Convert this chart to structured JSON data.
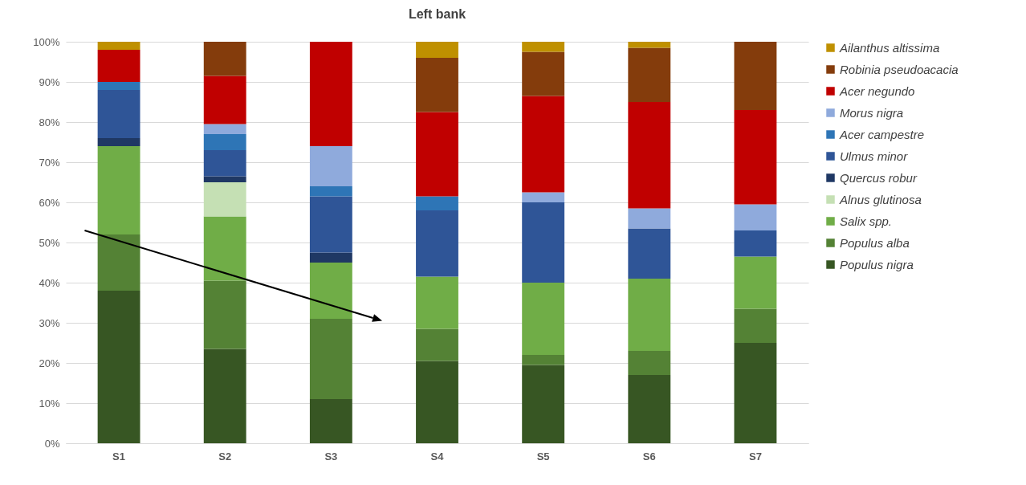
{
  "chart_data": {
    "type": "bar",
    "title": "Left bank",
    "stacked": true,
    "categories": [
      "S1",
      "S2",
      "S3",
      "S4",
      "S5",
      "S6",
      "S7"
    ],
    "series": [
      {
        "name": "Populus nigra",
        "color": "#375623",
        "values": [
          38,
          23.5,
          11,
          20.5,
          19.5,
          17,
          25
        ]
      },
      {
        "name": "Populus alba",
        "color": "#548235",
        "values": [
          14,
          17,
          20,
          8,
          2.5,
          6,
          8.5
        ]
      },
      {
        "name": "Salix spp.",
        "color": "#70ad47",
        "values": [
          22,
          16,
          14,
          13,
          18,
          18,
          13
        ]
      },
      {
        "name": "Alnus glutinosa",
        "color": "#c5e0b4",
        "values": [
          0,
          8.5,
          0,
          0,
          0,
          0,
          0
        ]
      },
      {
        "name": "Quercus robur",
        "color": "#1f3864",
        "values": [
          2,
          1.5,
          2.5,
          0,
          0,
          0,
          0
        ]
      },
      {
        "name": "Ulmus minor",
        "color": "#2f5597",
        "values": [
          12,
          6.5,
          14,
          16.5,
          20,
          12.5,
          6.5
        ]
      },
      {
        "name": "Acer campestre",
        "color": "#2e75b6",
        "values": [
          2,
          4,
          2.5,
          3.5,
          0,
          0,
          0
        ]
      },
      {
        "name": "Morus nigra",
        "color": "#8faadc",
        "values": [
          0,
          2.5,
          10,
          0,
          2.5,
          5,
          6.5
        ]
      },
      {
        "name": "Acer negundo",
        "color": "#c00000",
        "values": [
          8,
          12,
          26,
          21,
          24,
          26.5,
          23.5
        ]
      },
      {
        "name": "Robinia pseudoacacia",
        "color": "#843c0c",
        "values": [
          0,
          8.5,
          0,
          13.5,
          11,
          13.5,
          17
        ]
      },
      {
        "name": "Ailanthus altissima",
        "color": "#bf9000",
        "values": [
          2,
          0,
          0,
          4,
          2.5,
          1.5,
          0
        ]
      }
    ],
    "ylim": [
      0,
      100
    ],
    "yticks": [
      {
        "value": 0,
        "label": "0%"
      },
      {
        "value": 10,
        "label": "10%"
      },
      {
        "value": 20,
        "label": "20%"
      },
      {
        "value": 30,
        "label": "30%"
      },
      {
        "value": 40,
        "label": "40%"
      },
      {
        "value": 50,
        "label": "50%"
      },
      {
        "value": 60,
        "label": "60%"
      },
      {
        "value": 70,
        "label": "70%"
      },
      {
        "value": 80,
        "label": "80%"
      },
      {
        "value": 90,
        "label": "90%"
      },
      {
        "value": 100,
        "label": "100%"
      }
    ],
    "grid": "y",
    "legend": "right"
  }
}
